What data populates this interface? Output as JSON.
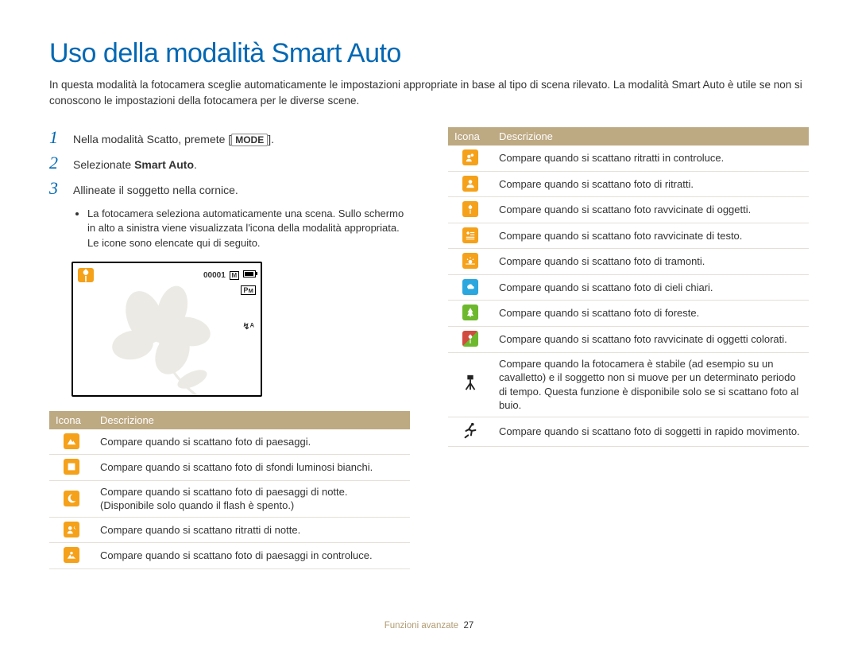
{
  "title": "Uso della modalità Smart Auto",
  "intro": "In questa modalità la fotocamera sceglie automaticamente le impostazioni appropriate in base al tipo di scena rilevato. La modalità Smart Auto è utile se non si conoscono le impostazioni della fotocamera per le diverse scene.",
  "steps": {
    "s1_pre": "Nella modalità Scatto, premete [",
    "s1_mode": "MODE",
    "s1_post": "].",
    "s2_pre": "Selezionate ",
    "s2_bold": "Smart Auto",
    "s2_post": ".",
    "s3": "Allineate il soggetto nella cornice."
  },
  "sub_bullet": "La fotocamera seleziona automaticamente una scena. Sullo schermo in alto a sinistra viene visualizzata l'icona della modalità appropriata. Le icone sono elencate qui di seguito.",
  "camera": {
    "counter": "00001",
    "mem_label": "M",
    "pixel_label": "Pᴍ",
    "flash_label": "↯ᴬ"
  },
  "headers": {
    "icon": "Icona",
    "desc": "Descrizione"
  },
  "colors": {
    "orange": "#f5a11a",
    "blue": "#2aa7df",
    "green": "#6db82c",
    "red_green": "#d24b3f",
    "black": "#222222"
  },
  "left_rows": [
    {
      "color": "#f5a11a",
      "shape": "mountain",
      "desc": "Compare quando si scattano foto di paesaggi."
    },
    {
      "color": "#f5a11a",
      "shape": "white-square",
      "desc": "Compare quando si scattano foto di sfondi luminosi bianchi."
    },
    {
      "color": "#f5a11a",
      "shape": "moon",
      "desc": "Compare quando si scattano foto di paesaggi di notte. (Disponibile solo quando il flash è spento.)"
    },
    {
      "color": "#f5a11a",
      "shape": "night-portrait",
      "desc": "Compare quando si scattano ritratti di notte."
    },
    {
      "color": "#f5a11a",
      "shape": "backlight-landscape",
      "desc": "Compare quando si scattano foto di paesaggi in controluce."
    }
  ],
  "right_rows": [
    {
      "color": "#f5a11a",
      "shape": "backlight-portrait",
      "desc": "Compare quando si scattano ritratti in controluce."
    },
    {
      "color": "#f5a11a",
      "shape": "portrait",
      "desc": "Compare quando si scattano foto di ritratti."
    },
    {
      "color": "#f5a11a",
      "shape": "macro",
      "desc": "Compare quando si scattano foto ravvicinate di oggetti."
    },
    {
      "color": "#f5a11a",
      "shape": "macro-text",
      "desc": "Compare quando si scattano foto ravvicinate di testo."
    },
    {
      "color": "#f5a11a",
      "shape": "sunset",
      "desc": "Compare quando si scattano foto di tramonti."
    },
    {
      "color": "#2aa7df",
      "shape": "sky",
      "desc": "Compare quando si scattano foto di cieli chiari."
    },
    {
      "color": "#6db82c",
      "shape": "forest",
      "desc": "Compare quando si scattano foto di foreste."
    },
    {
      "color": "split",
      "shape": "macro-color",
      "desc": "Compare quando si scattano foto ravvicinate di oggetti colorati."
    },
    {
      "color": "#222222",
      "shape": "tripod",
      "bg": "none",
      "desc": "Compare quando la fotocamera è stabile (ad esempio su un cavalletto) e il soggetto non si muove per un determinato periodo di tempo. Questa funzione è disponibile solo se si scattano foto al buio."
    },
    {
      "color": "#222222",
      "shape": "action",
      "bg": "none",
      "desc": "Compare quando si scattano foto di soggetti in rapido movimento."
    }
  ],
  "footer": {
    "section": "Funzioni avanzate",
    "page": "27"
  }
}
